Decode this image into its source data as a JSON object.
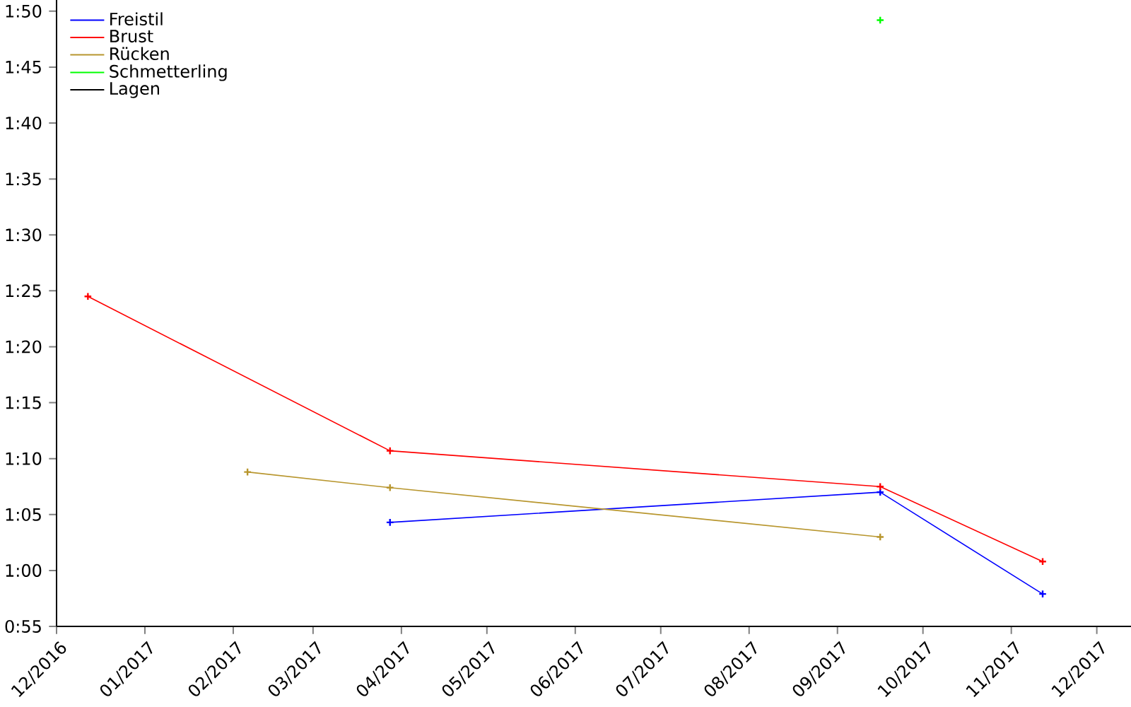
{
  "chart_data": {
    "type": "line",
    "marker": "cross",
    "line_style": "solid",
    "grid": false,
    "legend": "top left",
    "xlim": [
      "2016-12-01",
      "2017-12-13"
    ],
    "xticks": [
      {
        "value": "2016-12-01",
        "label": "12/2016"
      },
      {
        "value": "2017-01-01",
        "label": "01/2017"
      },
      {
        "value": "2017-02-01",
        "label": "02/2017"
      },
      {
        "value": "2017-03-01",
        "label": "03/2017"
      },
      {
        "value": "2017-04-01",
        "label": "04/2017"
      },
      {
        "value": "2017-05-01",
        "label": "05/2017"
      },
      {
        "value": "2017-06-01",
        "label": "06/2017"
      },
      {
        "value": "2017-07-01",
        "label": "07/2017"
      },
      {
        "value": "2017-08-01",
        "label": "08/2017"
      },
      {
        "value": "2017-09-01",
        "label": "09/2017"
      },
      {
        "value": "2017-10-01",
        "label": "10/2017"
      },
      {
        "value": "2017-11-01",
        "label": "11/2017"
      },
      {
        "value": "2017-12-01",
        "label": "12/2017"
      }
    ],
    "ylim": [
      55,
      111
    ],
    "yticks": [
      {
        "value": 55,
        "label": "0:55"
      },
      {
        "value": 60,
        "label": "1:00"
      },
      {
        "value": 65,
        "label": "1:05"
      },
      {
        "value": 70,
        "label": "1:10"
      },
      {
        "value": 75,
        "label": "1:15"
      },
      {
        "value": 80,
        "label": "1:20"
      },
      {
        "value": 85,
        "label": "1:25"
      },
      {
        "value": 90,
        "label": "1:30"
      },
      {
        "value": 95,
        "label": "1:35"
      },
      {
        "value": 100,
        "label": "1:40"
      },
      {
        "value": 105,
        "label": "1:45"
      },
      {
        "value": 110,
        "label": "1:50"
      }
    ],
    "series": [
      {
        "name": "Freistil",
        "color": "#0000ff",
        "x": [
          "2017-03-28",
          "2017-09-16",
          "2017-11-12"
        ],
        "values": [
          64.3,
          67.0,
          57.9
        ]
      },
      {
        "name": "Brust",
        "color": "#ff0000",
        "x": [
          "2016-12-12",
          "2017-03-28",
          "2017-09-16",
          "2017-11-12"
        ],
        "values": [
          84.5,
          70.7,
          67.5,
          60.8
        ]
      },
      {
        "name": "Rücken",
        "color": "#b8962e",
        "x": [
          "2017-02-06",
          "2017-03-28",
          "2017-09-16"
        ],
        "values": [
          68.8,
          67.4,
          63.0
        ]
      },
      {
        "name": "Schmetterling",
        "color": "#00ff00",
        "x": [
          "2017-09-16"
        ],
        "values": [
          109.2
        ]
      },
      {
        "name": "Lagen",
        "color": "#000000"
      }
    ]
  }
}
